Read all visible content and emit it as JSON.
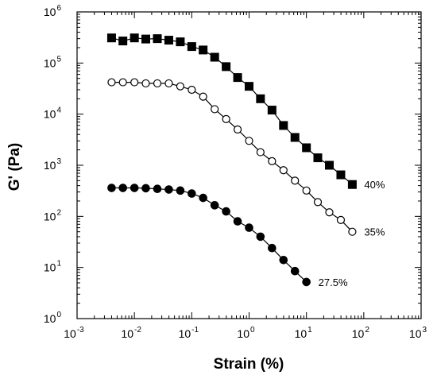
{
  "chart_data": {
    "type": "line",
    "title": "",
    "xlabel": "Strain (%)",
    "ylabel": "G' (Pa)",
    "xscale": "log",
    "yscale": "log",
    "xlim": [
      0.001,
      1000
    ],
    "ylim": [
      1,
      1000000
    ],
    "x_ticks": [
      {
        "base": "10",
        "exp": "-3"
      },
      {
        "base": "10",
        "exp": "-2"
      },
      {
        "base": "10",
        "exp": "-1"
      },
      {
        "base": "10",
        "exp": "0"
      },
      {
        "base": "10",
        "exp": "1"
      },
      {
        "base": "10",
        "exp": "2"
      },
      {
        "base": "10",
        "exp": "3"
      }
    ],
    "y_ticks": [
      {
        "base": "10",
        "exp": "0"
      },
      {
        "base": "10",
        "exp": "1"
      },
      {
        "base": "10",
        "exp": "2"
      },
      {
        "base": "10",
        "exp": "3"
      },
      {
        "base": "10",
        "exp": "4"
      },
      {
        "base": "10",
        "exp": "5"
      },
      {
        "base": "10",
        "exp": "6"
      }
    ],
    "grid": false,
    "legend": "none (series labeled at line ends)",
    "series": [
      {
        "name": "40%",
        "marker": "filled-square",
        "color": "#000000",
        "x": [
          0.004,
          0.0063,
          0.01,
          0.0158,
          0.0251,
          0.0398,
          0.0631,
          0.1,
          0.158,
          0.251,
          0.398,
          0.631,
          1,
          1.58,
          2.51,
          3.98,
          6.31,
          10,
          15.8,
          25.1,
          39.8,
          63.1
        ],
        "y": [
          310000,
          270000,
          310000,
          295000,
          300000,
          280000,
          260000,
          210000,
          180000,
          130000,
          85000,
          52000,
          35000,
          20000,
          12000,
          6000,
          3500,
          2200,
          1400,
          1000,
          650,
          420
        ]
      },
      {
        "name": "35%",
        "marker": "open-circle",
        "color": "#000000",
        "x": [
          0.004,
          0.0063,
          0.01,
          0.0158,
          0.0251,
          0.0398,
          0.0631,
          0.1,
          0.158,
          0.251,
          0.398,
          0.631,
          1,
          1.58,
          2.51,
          3.98,
          6.31,
          10,
          15.8,
          25.1,
          39.8,
          63.1
        ],
        "y": [
          42000,
          42000,
          42000,
          40000,
          40000,
          40000,
          35000,
          30000,
          22000,
          12500,
          8000,
          5000,
          3000,
          1800,
          1200,
          800,
          500,
          320,
          190,
          120,
          85,
          50
        ]
      },
      {
        "name": "27.5%",
        "marker": "filled-circle",
        "color": "#000000",
        "x": [
          0.004,
          0.0063,
          0.01,
          0.0158,
          0.0251,
          0.0398,
          0.0631,
          0.1,
          0.158,
          0.251,
          0.398,
          0.631,
          1,
          1.58,
          2.51,
          3.98,
          6.31,
          10
        ],
        "y": [
          360,
          360,
          360,
          355,
          345,
          335,
          320,
          280,
          230,
          165,
          125,
          80,
          60,
          40,
          24,
          14,
          8.5,
          5.2
        ]
      }
    ]
  }
}
